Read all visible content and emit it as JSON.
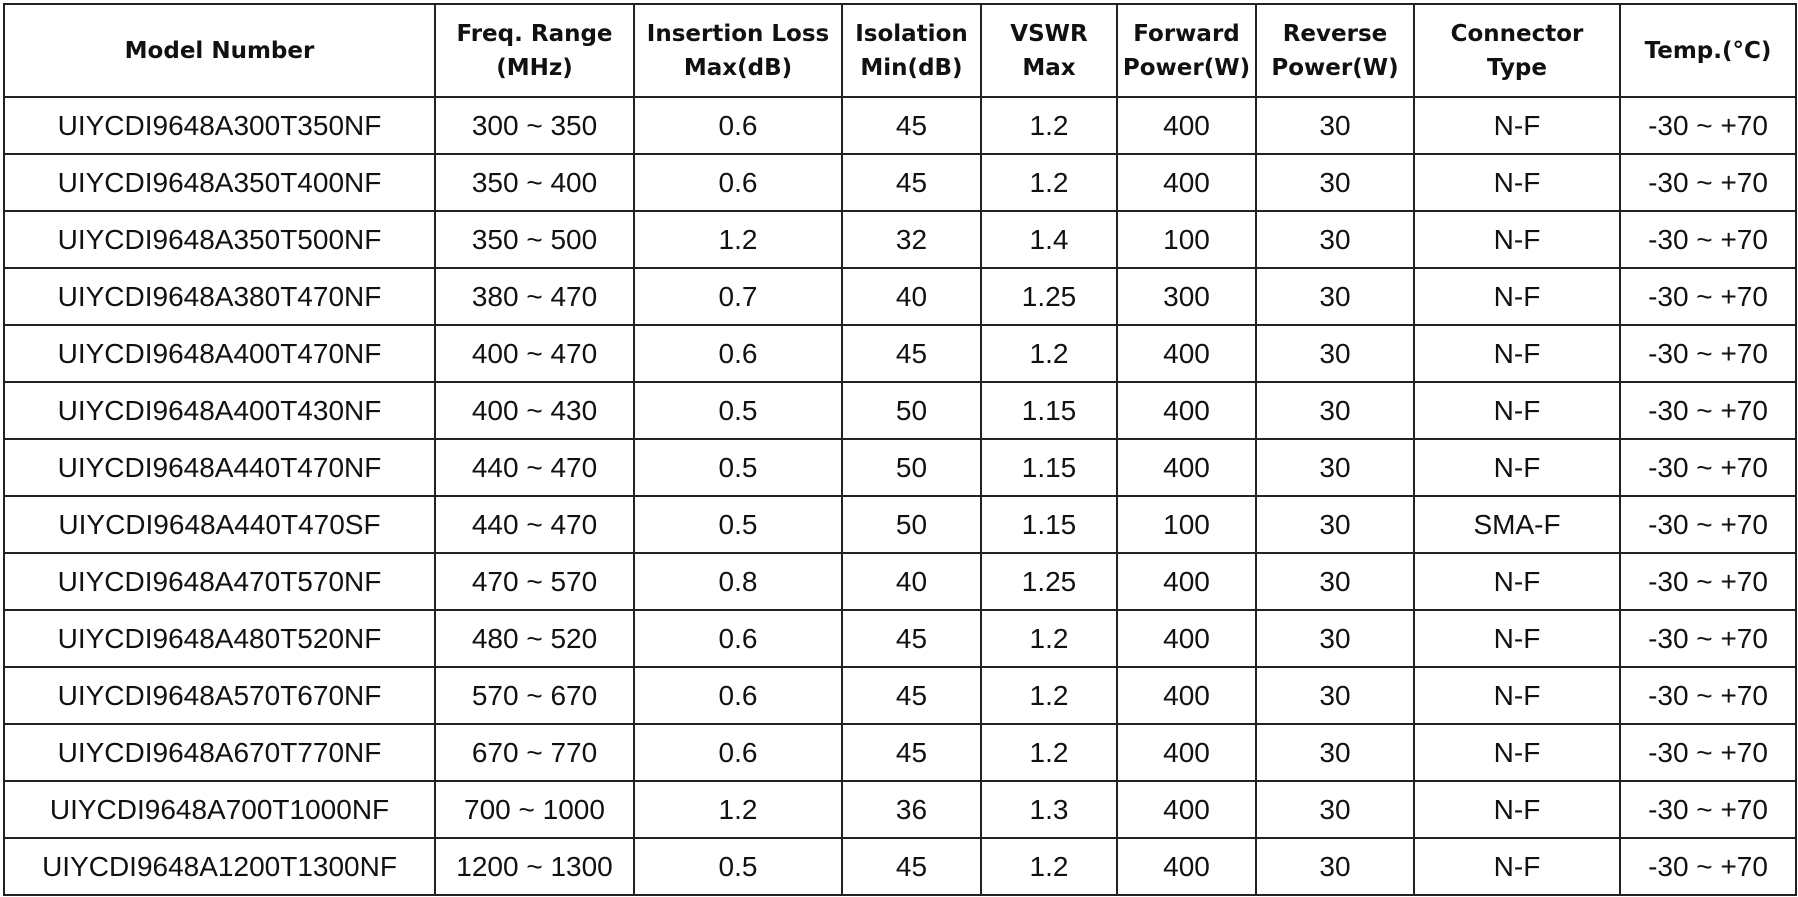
{
  "table": {
    "headers": [
      {
        "line1": "Model Number",
        "line2": ""
      },
      {
        "line1": "Freq. Range",
        "line2": "(MHz)"
      },
      {
        "line1": "Insertion Loss",
        "line2": "Max(dB)"
      },
      {
        "line1": "Isolation",
        "line2": "Min(dB)"
      },
      {
        "line1": "VSWR",
        "line2": "Max"
      },
      {
        "line1": "Forward",
        "line2": "Power(W)"
      },
      {
        "line1": "Reverse",
        "line2": "Power(W)"
      },
      {
        "line1": "Connector",
        "line2": "Type"
      },
      {
        "line1": "Temp.(°C)",
        "line2": ""
      }
    ],
    "rows": [
      [
        "UIYCDI9648A300T350NF",
        "300 ~ 350",
        "0.6",
        "45",
        "1.2",
        "400",
        "30",
        "N-F",
        "-30 ~ +70"
      ],
      [
        "UIYCDI9648A350T400NF",
        "350 ~ 400",
        "0.6",
        "45",
        "1.2",
        "400",
        "30",
        "N-F",
        "-30 ~ +70"
      ],
      [
        "UIYCDI9648A350T500NF",
        "350 ~ 500",
        "1.2",
        "32",
        "1.4",
        "100",
        "30",
        "N-F",
        "-30 ~ +70"
      ],
      [
        "UIYCDI9648A380T470NF",
        "380 ~ 470",
        "0.7",
        "40",
        "1.25",
        "300",
        "30",
        "N-F",
        "-30 ~ +70"
      ],
      [
        "UIYCDI9648A400T470NF",
        "400 ~ 470",
        "0.6",
        "45",
        "1.2",
        "400",
        "30",
        "N-F",
        "-30 ~ +70"
      ],
      [
        "UIYCDI9648A400T430NF",
        "400 ~ 430",
        "0.5",
        "50",
        "1.15",
        "400",
        "30",
        "N-F",
        "-30 ~ +70"
      ],
      [
        "UIYCDI9648A440T470NF",
        "440 ~ 470",
        "0.5",
        "50",
        "1.15",
        "400",
        "30",
        "N-F",
        "-30 ~ +70"
      ],
      [
        "UIYCDI9648A440T470SF",
        "440 ~ 470",
        "0.5",
        "50",
        "1.15",
        "100",
        "30",
        "SMA-F",
        "-30 ~ +70"
      ],
      [
        "UIYCDI9648A470T570NF",
        "470 ~ 570",
        "0.8",
        "40",
        "1.25",
        "400",
        "30",
        "N-F",
        "-30 ~ +70"
      ],
      [
        "UIYCDI9648A480T520NF",
        "480 ~ 520",
        "0.6",
        "45",
        "1.2",
        "400",
        "30",
        "N-F",
        "-30 ~ +70"
      ],
      [
        "UIYCDI9648A570T670NF",
        "570 ~ 670",
        "0.6",
        "45",
        "1.2",
        "400",
        "30",
        "N-F",
        "-30 ~ +70"
      ],
      [
        "UIYCDI9648A670T770NF",
        "670 ~ 770",
        "0.6",
        "45",
        "1.2",
        "400",
        "30",
        "N-F",
        "-30 ~ +70"
      ],
      [
        "UIYCDI9648A700T1000NF",
        "700 ~ 1000",
        "1.2",
        "36",
        "1.3",
        "400",
        "30",
        "N-F",
        "-30 ~ +70"
      ],
      [
        "UIYCDI9648A1200T1300NF",
        "1200 ~ 1300",
        "0.5",
        "45",
        "1.2",
        "400",
        "30",
        "N-F",
        "-30 ~ +70"
      ]
    ]
  }
}
